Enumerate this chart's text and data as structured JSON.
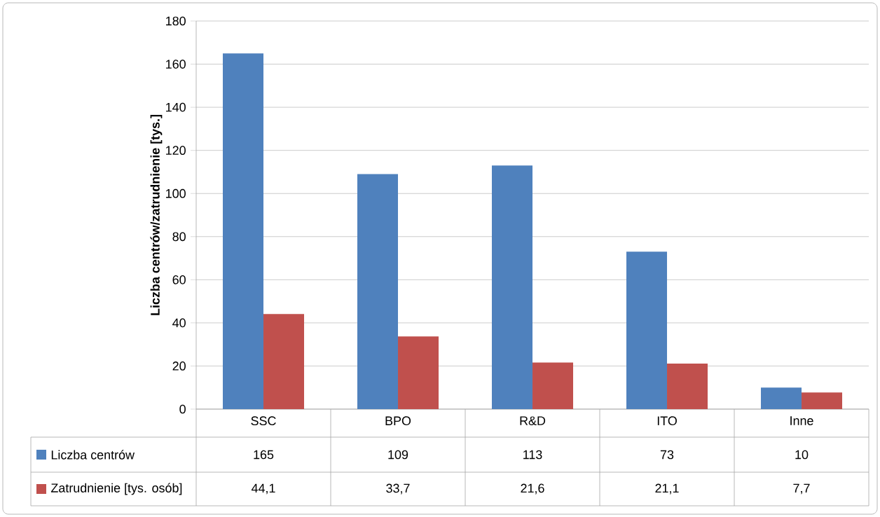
{
  "chart_data": {
    "type": "bar",
    "ylabel": "Liczba centrów/zatrudnienie [tys.]",
    "categories": [
      "SSC",
      "BPO",
      "R&D",
      "ITO",
      "Inne"
    ],
    "series": [
      {
        "name": "Liczba centrów",
        "color": "#4f81bd",
        "values": [
          165,
          109,
          113,
          73,
          10
        ],
        "value_labels": [
          "165",
          "109",
          "113",
          "73",
          "10"
        ]
      },
      {
        "name": "Zatrudnienie [tys. osób]",
        "color": "#c0504d",
        "values": [
          44.1,
          33.7,
          21.6,
          21.1,
          7.7
        ],
        "value_labels": [
          "44,1",
          "33,7",
          "21,6",
          "21,1",
          "7,7"
        ]
      }
    ],
    "ylim": [
      0,
      180
    ],
    "yticks": [
      0,
      20,
      40,
      60,
      80,
      100,
      120,
      140,
      160,
      180
    ],
    "grid": "y",
    "legend": "bottom left"
  }
}
